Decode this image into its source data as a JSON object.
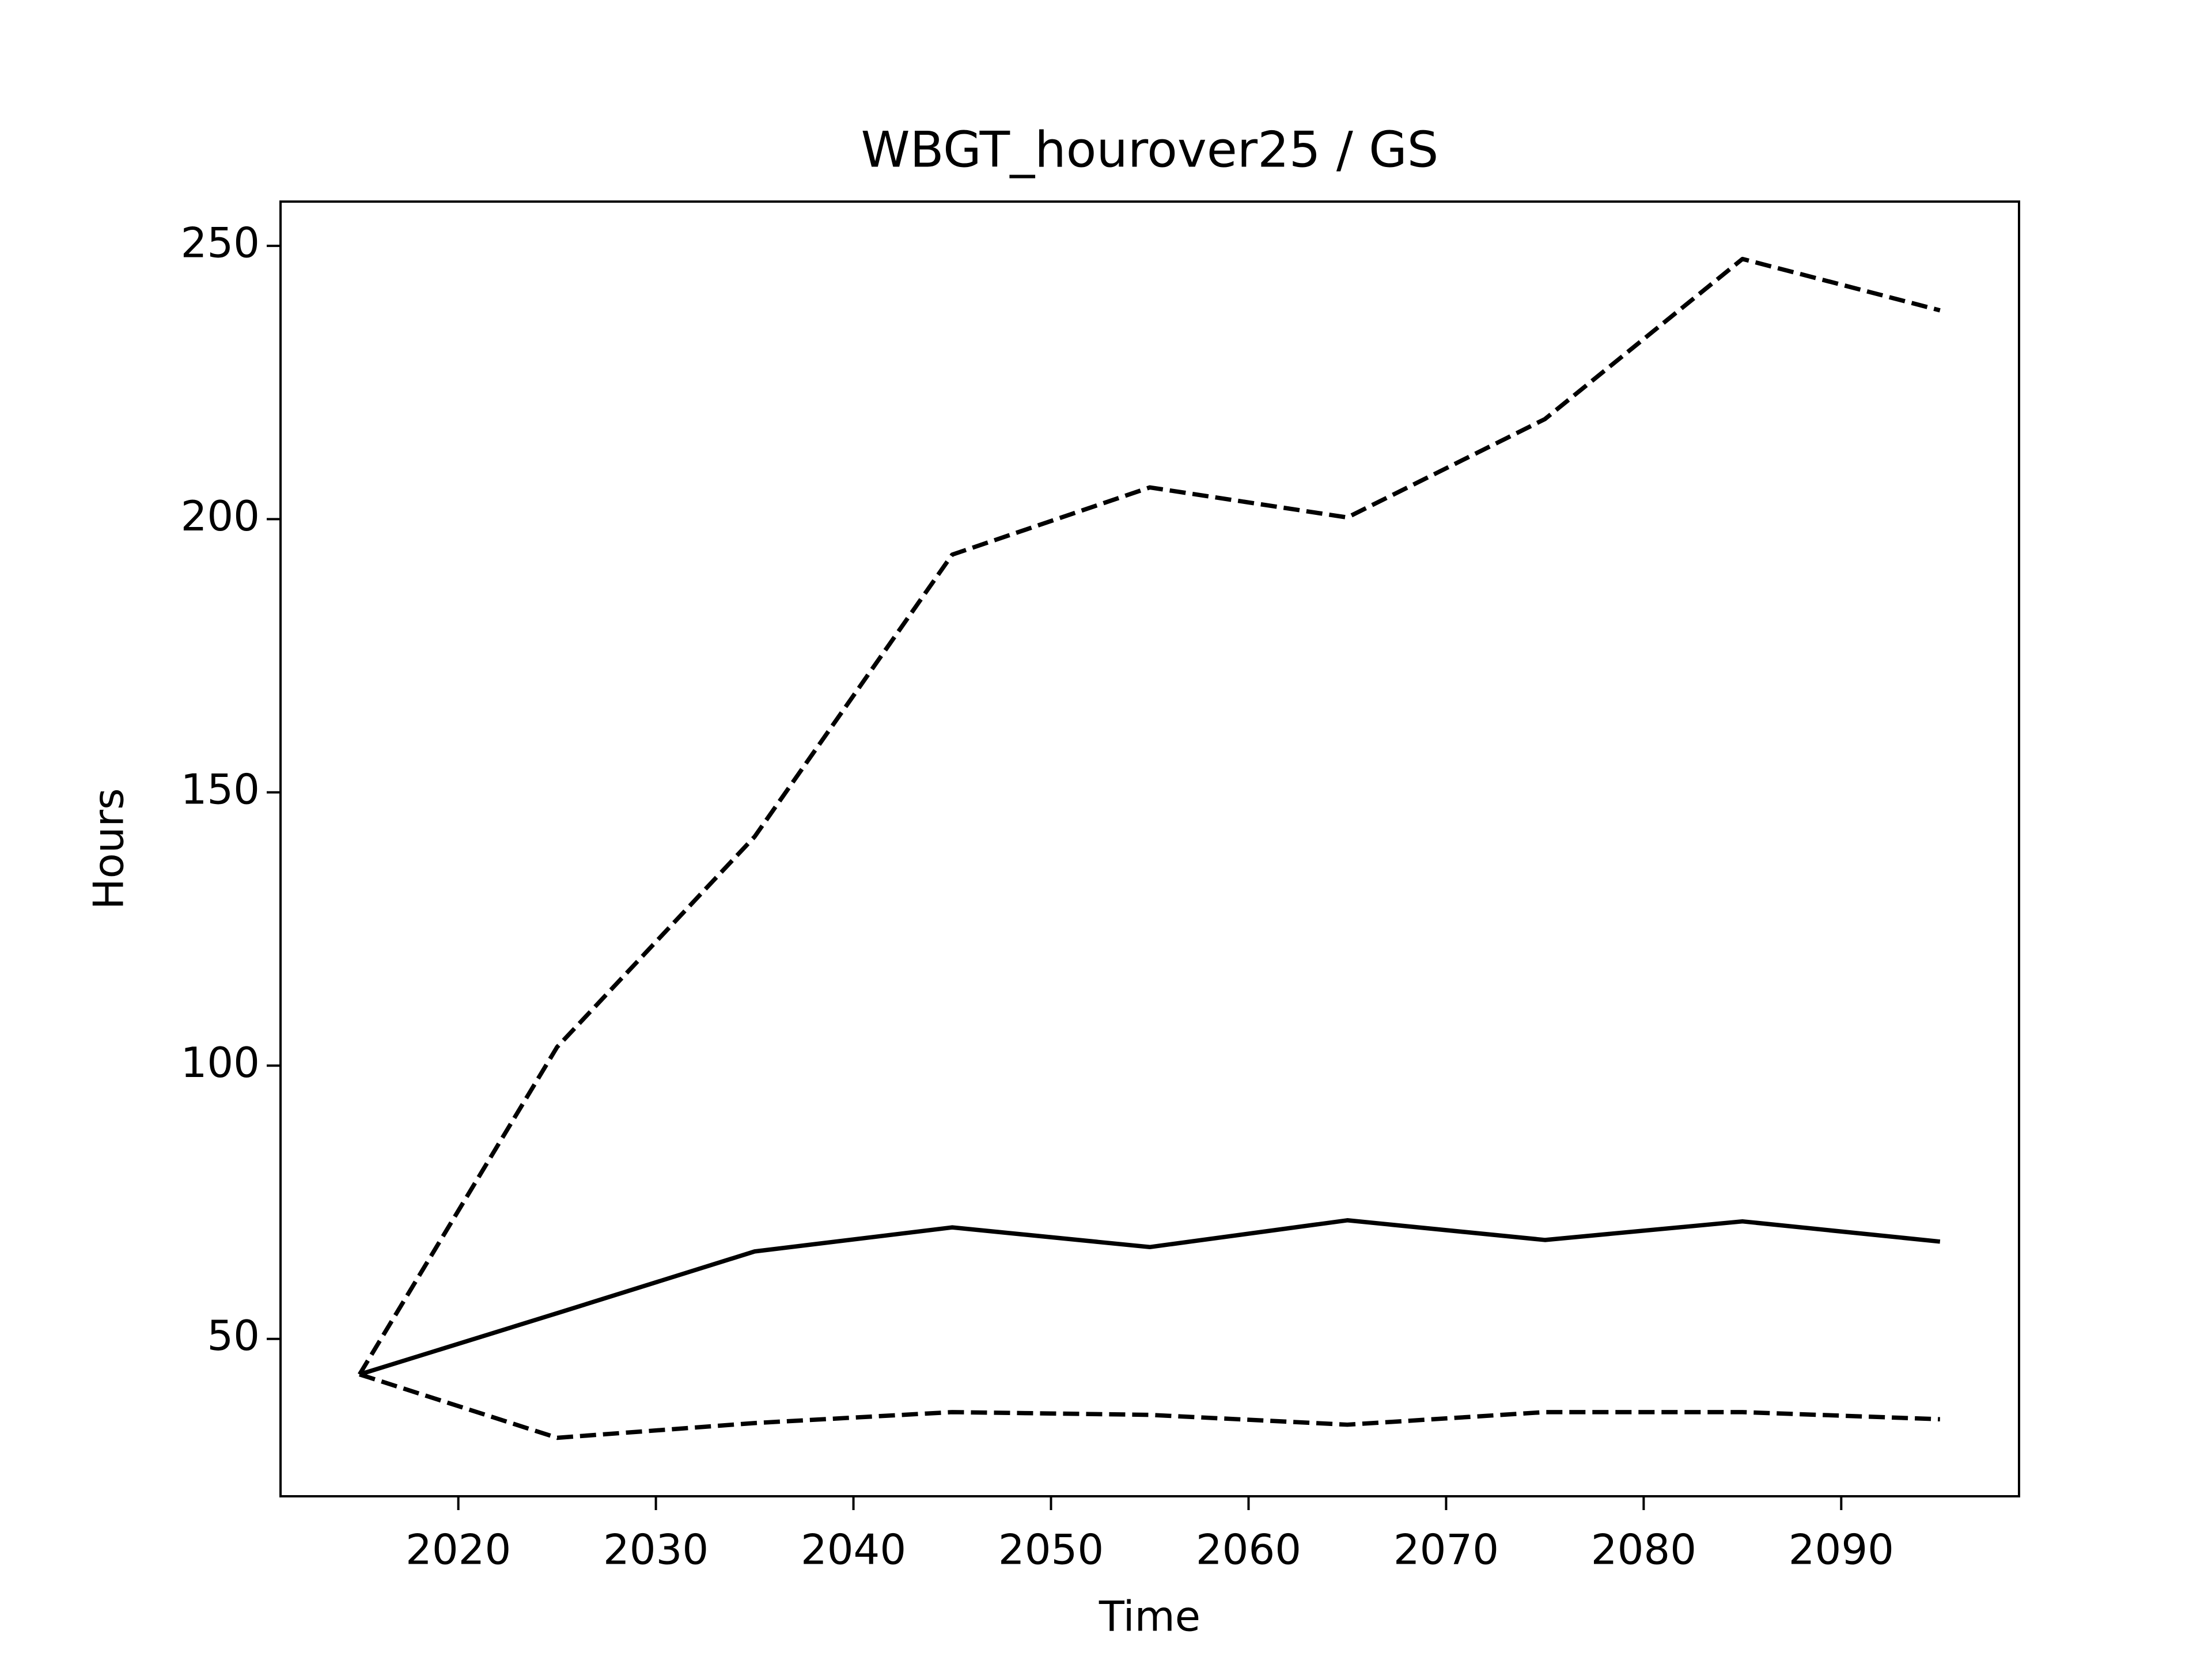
{
  "chart_data": {
    "type": "line",
    "title": "WBGT_hourover25 / GS",
    "x_label": "Time",
    "y_label": "Hours",
    "x": [
      2015,
      2025,
      2035,
      2045,
      2055,
      2065,
      2075,
      2085,
      2095
    ],
    "series": [
      {
        "color": "#000000",
        "style": "solid",
        "values": [
          43.5,
          54.7,
          66.0,
          70.4,
          66.8,
          71.7,
          68.1,
          71.5,
          67.8
        ]
      },
      {
        "color": "#000000",
        "style": "dashed",
        "values": [
          43.5,
          103.4,
          141.9,
          193.5,
          205.8,
          200.3,
          218.3,
          247.6,
          238.2
        ]
      },
      {
        "color": "#000000",
        "style": "dashed",
        "values": [
          43.5,
          31.9,
          34.6,
          36.6,
          36.1,
          34.3,
          36.6,
          36.6,
          35.3
        ]
      }
    ],
    "xlim": [
      2011,
      2099
    ],
    "ylim": [
      21.2,
      258.1
    ],
    "xticks": [
      2020,
      2030,
      2040,
      2050,
      2060,
      2070,
      2080,
      2090
    ],
    "yticks": [
      50,
      100,
      150,
      200,
      250
    ],
    "grid": false
  }
}
